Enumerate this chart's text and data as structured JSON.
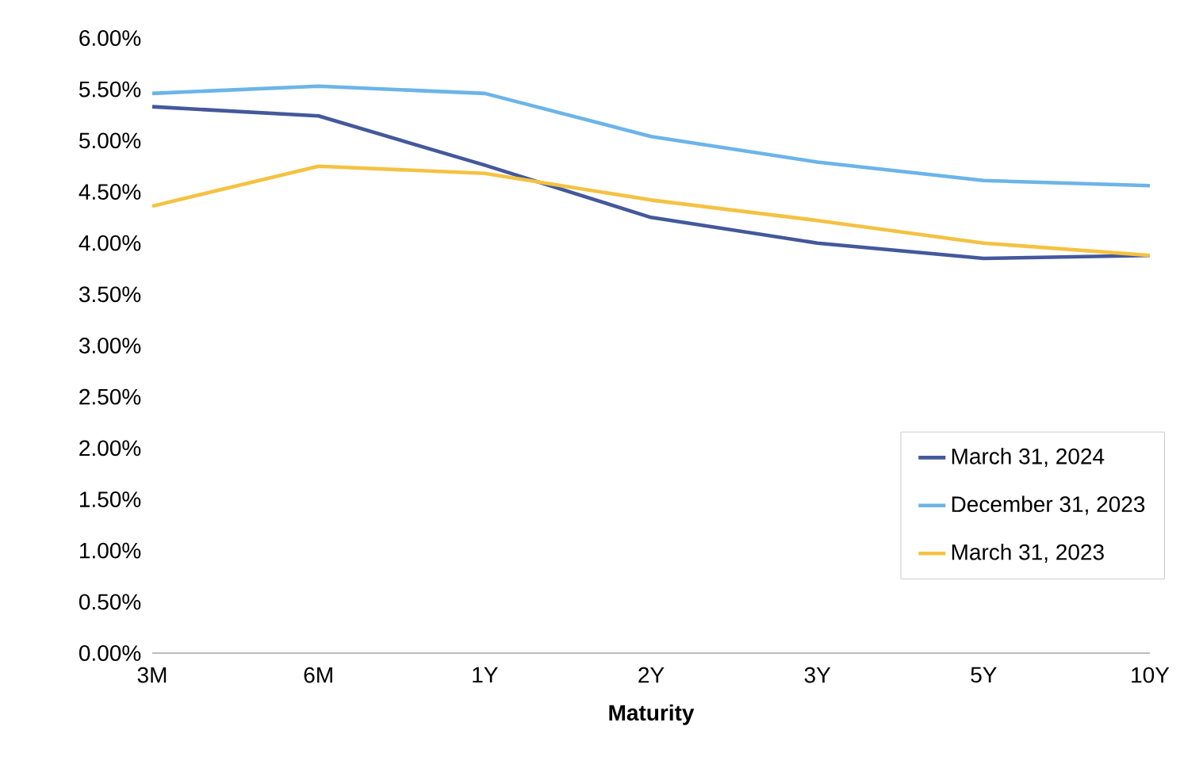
{
  "chart_data": {
    "type": "line",
    "xlabel": "Maturity",
    "categories": [
      "3M",
      "6M",
      "1Y",
      "2Y",
      "3Y",
      "5Y",
      "10Y"
    ],
    "ylim": [
      0,
      6
    ],
    "yticks": [
      {
        "value": 0,
        "label": "0.00%"
      },
      {
        "value": 0.5,
        "label": "0.50%"
      },
      {
        "value": 1,
        "label": "1.00%"
      },
      {
        "value": 1.5,
        "label": "1.50%"
      },
      {
        "value": 2,
        "label": "2.00%"
      },
      {
        "value": 2.5,
        "label": "2.50%"
      },
      {
        "value": 3,
        "label": "3.00%"
      },
      {
        "value": 3.5,
        "label": "3.50%"
      },
      {
        "value": 4,
        "label": "4.00%"
      },
      {
        "value": 4.5,
        "label": "4.50%"
      },
      {
        "value": 5,
        "label": "5.00%"
      },
      {
        "value": 5.5,
        "label": "5.50%"
      },
      {
        "value": 6,
        "label": "6.00%"
      }
    ],
    "series": [
      {
        "name": "March 31, 2024",
        "color": "#44589b",
        "values": [
          5.33,
          5.24,
          4.76,
          4.25,
          4.0,
          3.85,
          3.88
        ]
      },
      {
        "name": "December 31, 2023",
        "color": "#6cb4e8",
        "values": [
          5.46,
          5.53,
          5.46,
          5.04,
          4.79,
          4.61,
          4.56
        ]
      },
      {
        "name": "March 31, 2023",
        "color": "#f4c242",
        "values": [
          4.36,
          4.75,
          4.68,
          4.42,
          4.22,
          4.0,
          3.88
        ]
      }
    ],
    "legend": "bottom right",
    "grid": false,
    "marker": "none",
    "line_style": "solid"
  }
}
